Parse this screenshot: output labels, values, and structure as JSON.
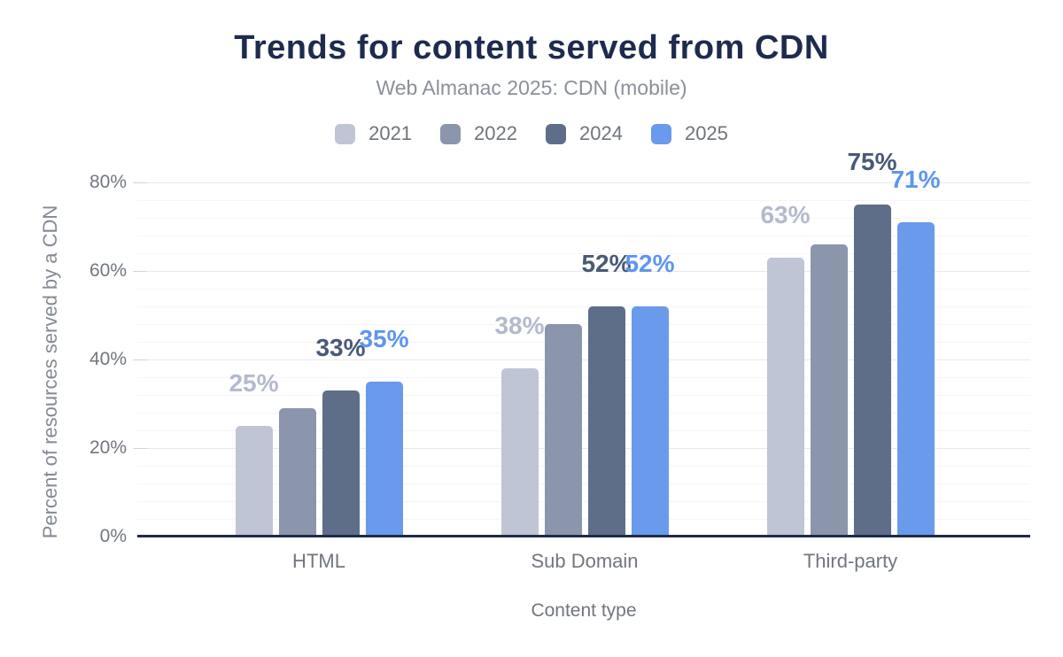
{
  "header": {
    "title": "Trends for content served from CDN",
    "subtitle": "Web Almanac 2025: CDN (mobile)"
  },
  "chart_data": {
    "type": "bar",
    "title": "Trends for content served from CDN",
    "subtitle": "Web Almanac 2025: CDN (mobile)",
    "xlabel": "Content type",
    "ylabel": "Percent of resources served by a CDN",
    "ylim": [
      0,
      80
    ],
    "y_tick_interval": 20,
    "minor_grid_interval": 4,
    "y_tick_labels": [
      "0%",
      "20%",
      "40%",
      "60%",
      "80%"
    ],
    "grid": true,
    "legend_position": "top",
    "categories": [
      "HTML",
      "Sub Domain",
      "Third-party"
    ],
    "series": [
      {
        "name": "2021",
        "color": "#bfc5d4",
        "label_color": "#b3bace",
        "values": [
          25,
          38,
          63
        ],
        "labels": [
          "25%",
          "38%",
          "63%"
        ]
      },
      {
        "name": "2022",
        "color": "#8b96ac",
        "label_color": "#8b96ac",
        "values": [
          29,
          48,
          66
        ],
        "labels": [
          "",
          "",
          ""
        ]
      },
      {
        "name": "2024",
        "color": "#5e6e89",
        "label_color": "#495977",
        "values": [
          33,
          52,
          75
        ],
        "labels": [
          "33%",
          "52%",
          "75%"
        ]
      },
      {
        "name": "2025",
        "color": "#699aeb",
        "label_color": "#5e95ee",
        "values": [
          35,
          52,
          71
        ],
        "labels": [
          "35%",
          "52%",
          "71%"
        ]
      }
    ]
  },
  "colors": {
    "title": "#1e2b4f",
    "subtitle": "#8a909a",
    "axis_line": "#1f2b47",
    "major_grid": "#e9e9ec",
    "minor_grid": "#f5f5f7",
    "tick_text": "#71767f"
  }
}
